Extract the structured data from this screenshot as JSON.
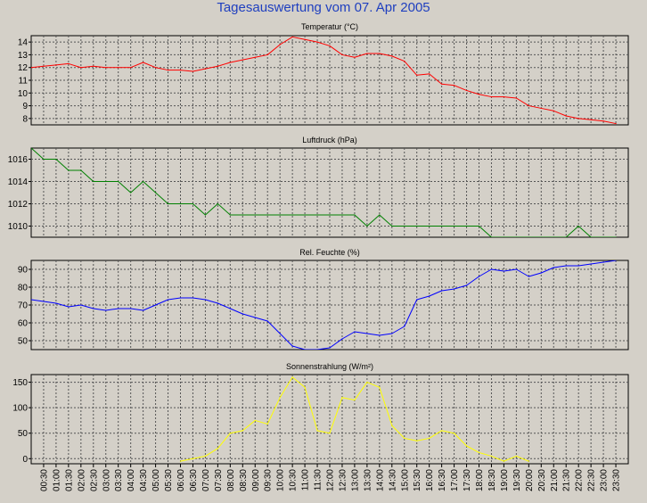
{
  "title": "Tagesauswertung vom 07. Apr 2005",
  "x_ticks": [
    "00:30",
    "01:00",
    "01:30",
    "02:00",
    "02:30",
    "03:00",
    "03:30",
    "04:00",
    "04:30",
    "05:00",
    "05:30",
    "06:00",
    "06:30",
    "07:00",
    "07:30",
    "08:00",
    "08:30",
    "09:00",
    "09:30",
    "10:00",
    "10:30",
    "11:00",
    "11:30",
    "12:00",
    "12:30",
    "13:00",
    "13:30",
    "14:00",
    "14:30",
    "15:00",
    "15:30",
    "16:00",
    "16:30",
    "17:00",
    "17:30",
    "18:00",
    "18:30",
    "19:00",
    "19:30",
    "20:00",
    "20:30",
    "21:00",
    "21:30",
    "22:00",
    "22:30",
    "23:00",
    "23:30"
  ],
  "chart_data": [
    {
      "type": "line",
      "title": "Temperatur (°C)",
      "color": "#ff0000",
      "ylim": [
        7.5,
        14.5
      ],
      "yticks": [
        8,
        9,
        10,
        11,
        12,
        13,
        14
      ],
      "x": [
        "00:00",
        "00:30",
        "01:00",
        "01:30",
        "02:00",
        "02:30",
        "03:00",
        "03:30",
        "04:00",
        "04:30",
        "05:00",
        "05:30",
        "06:00",
        "06:30",
        "07:00",
        "07:30",
        "08:00",
        "08:30",
        "09:00",
        "09:30",
        "10:00",
        "10:30",
        "11:00",
        "11:30",
        "12:00",
        "12:30",
        "13:00",
        "13:30",
        "14:00",
        "14:30",
        "15:00",
        "15:30",
        "16:00",
        "16:30",
        "17:00",
        "17:30",
        "18:00",
        "18:30",
        "19:00",
        "19:30",
        "20:00",
        "20:30",
        "21:00",
        "21:30",
        "22:00",
        "22:30",
        "23:00",
        "23:30"
      ],
      "values": [
        12.0,
        12.1,
        12.2,
        12.3,
        12.0,
        12.1,
        12.0,
        12.0,
        12.0,
        12.4,
        12.0,
        11.8,
        11.8,
        11.7,
        11.9,
        12.1,
        12.4,
        12.6,
        12.8,
        13.0,
        13.8,
        14.4,
        14.2,
        14.0,
        13.7,
        13.0,
        12.8,
        13.1,
        13.1,
        12.9,
        12.5,
        11.4,
        11.5,
        10.7,
        10.6,
        10.2,
        9.9,
        9.7,
        9.7,
        9.6,
        9.0,
        8.8,
        8.6,
        8.2,
        8.0,
        7.9,
        7.8,
        7.6
      ]
    },
    {
      "type": "line",
      "title": "Luftdruck (hPa)",
      "color": "#008000",
      "ylim": [
        1009,
        1017
      ],
      "yticks": [
        1010,
        1012,
        1014,
        1016
      ],
      "x": [
        "00:00",
        "00:30",
        "01:00",
        "01:30",
        "02:00",
        "02:30",
        "03:00",
        "03:30",
        "04:00",
        "04:30",
        "05:00",
        "05:30",
        "06:00",
        "06:30",
        "07:00",
        "07:30",
        "08:00",
        "08:30",
        "09:00",
        "09:30",
        "10:00",
        "10:30",
        "11:00",
        "11:30",
        "12:00",
        "12:30",
        "13:00",
        "13:30",
        "14:00",
        "14:30",
        "15:00",
        "15:30",
        "16:00",
        "16:30",
        "17:00",
        "17:30",
        "18:00",
        "18:30",
        "19:00",
        "19:30",
        "20:00",
        "20:30",
        "21:00",
        "21:30",
        "22:00",
        "22:30",
        "23:00",
        "23:30"
      ],
      "values": [
        1017,
        1016,
        1016,
        1015,
        1015,
        1014,
        1014,
        1014,
        1013,
        1014,
        1013,
        1012,
        1012,
        1012,
        1011,
        1012,
        1011,
        1011,
        1011,
        1011,
        1011,
        1011,
        1011,
        1011,
        1011,
        1011,
        1011,
        1010,
        1011,
        1010,
        1010,
        1010,
        1010,
        1010,
        1010,
        1010,
        1010,
        1009,
        1009,
        1009,
        1009,
        1009,
        1009,
        1009,
        1010,
        1009,
        1009,
        1009
      ]
    },
    {
      "type": "line",
      "title": "Rel. Feuchte (%)",
      "color": "#0000ff",
      "ylim": [
        45,
        95
      ],
      "yticks": [
        50,
        60,
        70,
        80,
        90
      ],
      "x": [
        "00:00",
        "00:30",
        "01:00",
        "01:30",
        "02:00",
        "02:30",
        "03:00",
        "03:30",
        "04:00",
        "04:30",
        "05:00",
        "05:30",
        "06:00",
        "06:30",
        "07:00",
        "07:30",
        "08:00",
        "08:30",
        "09:00",
        "09:30",
        "10:00",
        "10:30",
        "11:00",
        "11:30",
        "12:00",
        "12:30",
        "13:00",
        "13:30",
        "14:00",
        "14:30",
        "15:00",
        "15:30",
        "16:00",
        "16:30",
        "17:00",
        "17:30",
        "18:00",
        "18:30",
        "19:00",
        "19:30",
        "20:00",
        "20:30",
        "21:00",
        "21:30",
        "22:00",
        "22:30",
        "23:00",
        "23:30"
      ],
      "values": [
        73,
        72,
        71,
        69,
        70,
        68,
        67,
        68,
        68,
        67,
        70,
        73,
        74,
        74,
        73,
        71,
        68,
        65,
        63,
        61,
        54,
        47,
        45,
        45,
        46,
        51,
        55,
        54,
        53,
        54,
        58,
        73,
        75,
        78,
        79,
        81,
        86,
        90,
        89,
        90,
        86,
        88,
        91,
        92,
        92,
        93,
        94,
        95
      ]
    },
    {
      "type": "line",
      "title": "Sonnenstrahlung (W/m²)",
      "color": "#ffff00",
      "ylim": [
        -10,
        165
      ],
      "yticks": [
        0,
        50,
        100,
        150
      ],
      "x": [
        "06:00",
        "06:30",
        "07:00",
        "07:30",
        "08:00",
        "08:30",
        "09:00",
        "09:30",
        "10:00",
        "10:30",
        "11:00",
        "11:30",
        "12:00",
        "12:30",
        "13:00",
        "13:30",
        "14:00",
        "14:30",
        "15:00",
        "15:30",
        "16:00",
        "16:30",
        "17:00",
        "17:30",
        "18:00",
        "18:30",
        "19:00",
        "19:30",
        "20:00"
      ],
      "values": [
        -5,
        0,
        5,
        20,
        50,
        55,
        75,
        68,
        120,
        160,
        140,
        55,
        50,
        120,
        115,
        150,
        140,
        65,
        40,
        35,
        40,
        55,
        50,
        25,
        12,
        5,
        -5,
        5,
        -5
      ]
    }
  ]
}
